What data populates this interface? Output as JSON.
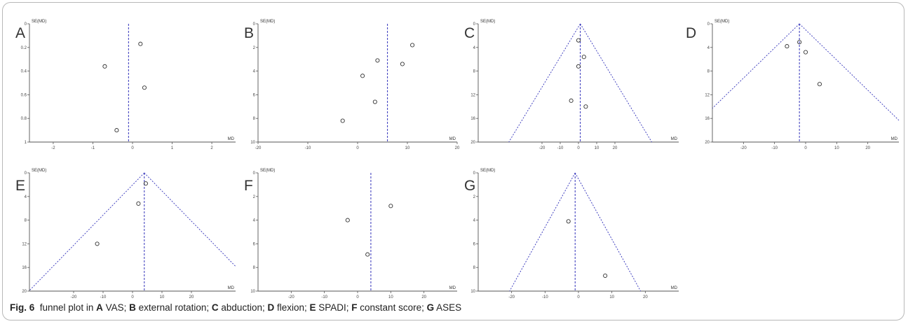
{
  "caption": {
    "fig_label": "Fig. 6",
    "parts": [
      {
        "pre": "  funnel plot in ",
        "letter": "A",
        "text": " VAS; "
      },
      {
        "pre": "",
        "letter": "B",
        "text": " external rotation; "
      },
      {
        "pre": "",
        "letter": "C",
        "text": " abduction; "
      },
      {
        "pre": "",
        "letter": "D",
        "text": " flexion; "
      },
      {
        "pre": "",
        "letter": "E",
        "text": " SPADI; "
      },
      {
        "pre": "",
        "letter": "F",
        "text": " constant score; "
      },
      {
        "pre": "",
        "letter": "G",
        "text": " ASES"
      }
    ]
  },
  "colors": {
    "line": "#3333bb",
    "axis": "#555555",
    "marker": "#333333"
  },
  "chart_data": [
    {
      "type": "scatter",
      "panel": "A",
      "xlabel": "MD",
      "ylabel": "SE(MD)",
      "xlim": [
        -2.6,
        2.6
      ],
      "ylim": [
        0,
        1
      ],
      "y_inverted": true,
      "xticks": [
        -2,
        -1,
        0,
        1,
        2
      ],
      "yticks": [
        0,
        0.2,
        0.4,
        0.6,
        0.8,
        1
      ],
      "pooled_md": -0.1,
      "funnel": false,
      "points": [
        [
          0.2,
          0.17
        ],
        [
          -0.7,
          0.36
        ],
        [
          0.3,
          0.54
        ],
        [
          -0.4,
          0.9
        ]
      ]
    },
    {
      "type": "scatter",
      "panel": "B",
      "xlabel": "MD",
      "ylabel": "SE(MD)",
      "xlim": [
        -20,
        20
      ],
      "ylim": [
        0,
        10
      ],
      "y_inverted": true,
      "xticks": [
        -20,
        -10,
        0,
        10,
        20
      ],
      "yticks": [
        0,
        2,
        4,
        6,
        8,
        10
      ],
      "pooled_md": 6,
      "funnel": false,
      "points": [
        [
          11,
          1.8
        ],
        [
          4,
          3.1
        ],
        [
          9,
          3.4
        ],
        [
          1,
          4.4
        ],
        [
          3.5,
          6.6
        ],
        [
          -3,
          8.2
        ]
      ]
    },
    {
      "type": "scatter",
      "panel": "C",
      "xlabel": "MD",
      "ylabel": "SE(MD)",
      "xlim": [
        -55,
        55
      ],
      "ylim": [
        0,
        20
      ],
      "y_inverted": true,
      "xticks": [
        -20,
        -10,
        0,
        10,
        20
      ],
      "yticks": [
        0,
        4,
        8,
        12,
        16,
        20
      ],
      "pooled_md": 1,
      "funnel": true,
      "points": [
        [
          0,
          2.8
        ],
        [
          3,
          5.6
        ],
        [
          0,
          7.2
        ],
        [
          -4,
          13
        ],
        [
          4,
          14
        ]
      ]
    },
    {
      "type": "scatter",
      "panel": "D",
      "xlabel": "MD",
      "ylabel": "SE(MD)",
      "xlim": [
        -30,
        30
      ],
      "ylim": [
        0,
        20
      ],
      "y_inverted": true,
      "xticks": [
        -20,
        -10,
        0,
        10,
        20
      ],
      "yticks": [
        0,
        4,
        8,
        12,
        16,
        20
      ],
      "pooled_md": -2,
      "funnel": true,
      "points": [
        [
          -2,
          3.1
        ],
        [
          -6,
          3.8
        ],
        [
          0,
          4.8
        ],
        [
          4.5,
          10.2
        ]
      ]
    },
    {
      "type": "scatter",
      "panel": "E",
      "xlabel": "MD",
      "ylabel": "SE(MD)",
      "xlim": [
        -35,
        35
      ],
      "ylim": [
        0,
        20
      ],
      "y_inverted": true,
      "xticks": [
        -20,
        -10,
        0,
        10,
        20
      ],
      "yticks": [
        0,
        4,
        8,
        12,
        16,
        20
      ],
      "pooled_md": 4,
      "funnel": true,
      "points": [
        [
          4.5,
          1.8
        ],
        [
          2,
          5.2
        ],
        [
          -12,
          12
        ]
      ]
    },
    {
      "type": "scatter",
      "panel": "F",
      "xlabel": "MD",
      "ylabel": "SE(MD)",
      "xlim": [
        -30,
        30
      ],
      "ylim": [
        0,
        10
      ],
      "y_inverted": true,
      "xticks": [
        -20,
        -10,
        0,
        10,
        20
      ],
      "yticks": [
        0,
        2,
        4,
        6,
        8,
        10
      ],
      "pooled_md": 4,
      "funnel": false,
      "points": [
        [
          10,
          2.8
        ],
        [
          -3,
          4
        ],
        [
          3,
          6.9
        ]
      ]
    },
    {
      "type": "scatter",
      "panel": "G",
      "xlabel": "MD",
      "ylabel": "SE(MD)",
      "xlim": [
        -30,
        30
      ],
      "ylim": [
        0,
        10
      ],
      "y_inverted": true,
      "xticks": [
        -20,
        -10,
        0,
        10,
        20
      ],
      "yticks": [
        0,
        2,
        4,
        6,
        8,
        10
      ],
      "pooled_md": -1,
      "funnel": true,
      "points": [
        [
          -3,
          4.1
        ],
        [
          8,
          8.7
        ]
      ]
    }
  ]
}
